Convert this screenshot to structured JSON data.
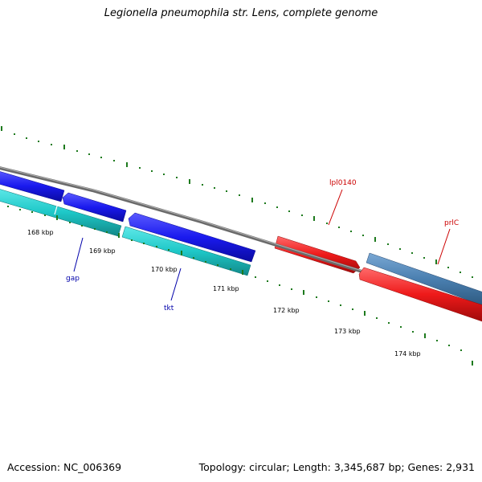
{
  "title": "Legionella pneumophila str. Lens, complete genome",
  "footer": {
    "accession": "Accession: NC_006369",
    "topology": "Topology: circular; Length: 3,345,687 bp; Genes: 2,931"
  },
  "scale_labels": [
    "168 kbp",
    "169 kbp",
    "170 kbp",
    "171 kbp",
    "172 kbp",
    "173 kbp",
    "174 kbp"
  ],
  "genes": [
    {
      "id": "fwd-blue-1",
      "label": "",
      "strand": "minus",
      "color": "#1a1aee"
    },
    {
      "id": "fwd-blue-2",
      "label": "",
      "strand": "minus",
      "color": "#1a1aee"
    },
    {
      "id": "fwd-blue-3",
      "label": "",
      "strand": "minus",
      "color": "#1a1aee"
    },
    {
      "id": "gap",
      "label": "gap",
      "strand": "plus",
      "color": "#1ec8c8",
      "label_color": "#0000aa"
    },
    {
      "id": "tkt",
      "label": "tkt",
      "strand": "plus",
      "color": "#1ec8c8",
      "label_color": "#0000aa"
    },
    {
      "id": "lpl0140",
      "label": "lpl0140",
      "strand": "plus",
      "color": "#ee1a1a",
      "label_color": "#cc0000"
    },
    {
      "id": "lpl-red-2",
      "label": "",
      "strand": "minus",
      "color": "#ee1a1a"
    },
    {
      "id": "prlC",
      "label": "prlC",
      "strand": "plus",
      "color": "#4a7fb0",
      "label_color": "#cc0000"
    }
  ],
  "colors": {
    "backbone": "#7a7a7a",
    "ticks": "#1e7a1e",
    "blue_gene": "#1a1aee",
    "cyan_gene": "#1ec8c8",
    "red_gene": "#ee1a1a",
    "steel_gene": "#4a7fb0"
  }
}
